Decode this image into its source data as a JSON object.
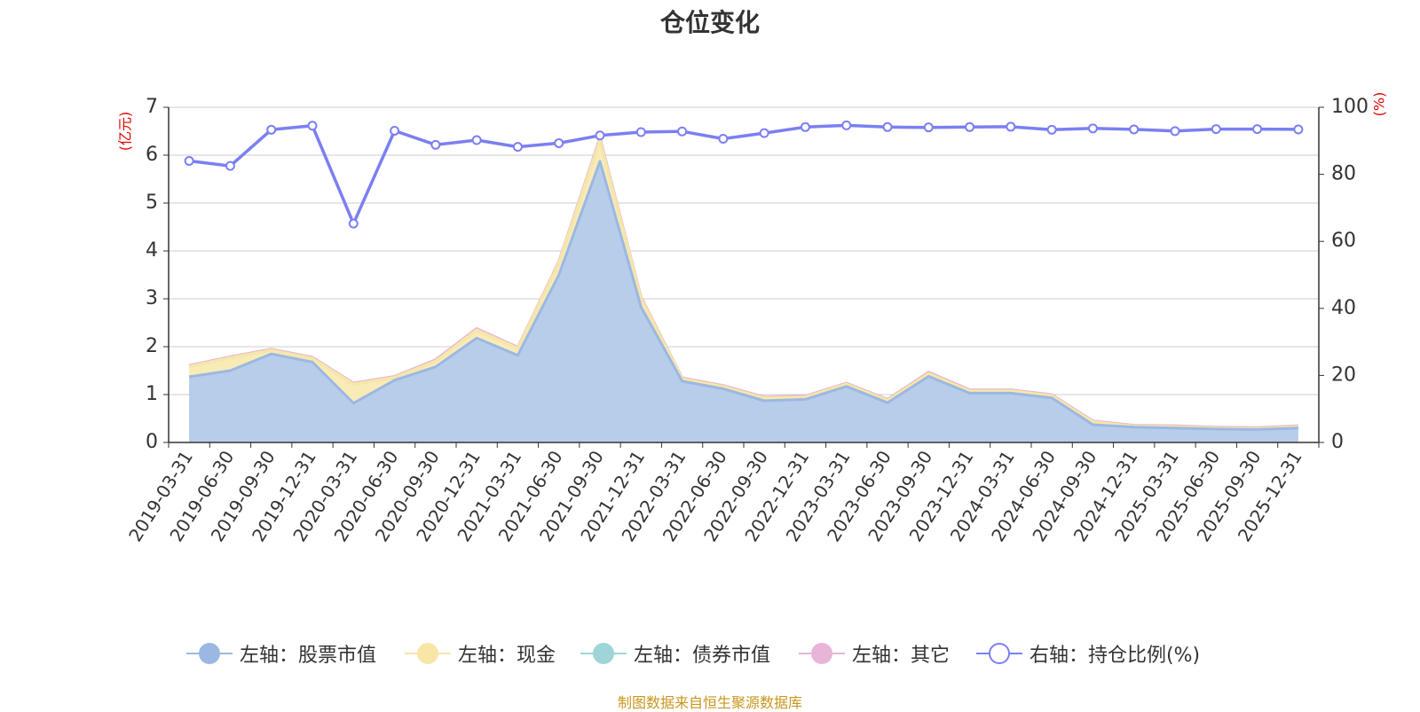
{
  "chart_data": {
    "type": "area",
    "title": "仓位变化",
    "left_axis_unit": "(亿元)",
    "right_axis_unit": "(%)",
    "categories": [
      "2019-03-31",
      "2019-06-30",
      "2019-09-30",
      "2019-12-31",
      "2020-03-31",
      "2020-06-30",
      "2020-09-30",
      "2020-12-31",
      "2021-03-31",
      "2021-06-30",
      "2021-09-30",
      "2021-12-31",
      "2022-03-31",
      "2022-06-30",
      "2022-09-30",
      "2022-12-31",
      "2023-03-31",
      "2023-06-30",
      "2023-09-30",
      "2023-12-31",
      "2024-03-31",
      "2024-06-30",
      "2024-09-30",
      "2024-12-31",
      "2025-03-31",
      "2025-06-30",
      "2025-09-30",
      "2025-12-31"
    ],
    "left_ylim": [
      0,
      7
    ],
    "left_ticks": [
      0,
      1,
      2,
      3,
      4,
      5,
      6,
      7
    ],
    "right_ylim": [
      0,
      100
    ],
    "right_ticks": [
      0,
      20,
      40,
      60,
      80,
      100
    ],
    "grid": true,
    "legend_position": "bottom",
    "series": [
      {
        "name": "左轴：股票市值",
        "axis": "left",
        "stacked": true,
        "color": "#9bb8e3",
        "fill": "#b8cdea",
        "values": [
          1.37,
          1.5,
          1.85,
          1.68,
          0.82,
          1.3,
          1.58,
          2.18,
          1.82,
          3.5,
          5.87,
          2.83,
          1.28,
          1.12,
          0.87,
          0.9,
          1.17,
          0.83,
          1.38,
          1.03,
          1.03,
          0.93,
          0.37,
          0.32,
          0.3,
          0.28,
          0.27,
          0.3
        ]
      },
      {
        "name": "左轴：现金",
        "axis": "left",
        "stacked": true,
        "color": "#f8e6a6",
        "fill": "#f8ebb5",
        "values": [
          0.22,
          0.27,
          0.08,
          0.08,
          0.4,
          0.06,
          0.12,
          0.17,
          0.15,
          0.25,
          0.45,
          0.18,
          0.05,
          0.05,
          0.06,
          0.05,
          0.05,
          0.05,
          0.06,
          0.05,
          0.05,
          0.05,
          0.06,
          0.02,
          0.03,
          0.02,
          0.02,
          0.03
        ]
      },
      {
        "name": "左轴：债券市值",
        "axis": "left",
        "stacked": true,
        "color": "#9fd5d8",
        "fill": "#a8d8d8",
        "values": [
          0,
          0,
          0,
          0,
          0,
          0,
          0,
          0,
          0,
          0,
          0,
          0,
          0,
          0,
          0,
          0,
          0,
          0,
          0,
          0,
          0,
          0,
          0,
          0,
          0,
          0,
          0,
          0
        ]
      },
      {
        "name": "左轴：其它",
        "axis": "left",
        "stacked": true,
        "color": "#e8b4d8",
        "fill": "#eec2de",
        "values": [
          0.02,
          0.02,
          0.02,
          0.02,
          0.02,
          0.02,
          0.03,
          0.03,
          0.02,
          0.03,
          0.05,
          0.03,
          0.02,
          0.02,
          0.02,
          0.02,
          0.02,
          0.02,
          0.03,
          0.02,
          0.02,
          0.02,
          0.02,
          0.02,
          0.02,
          0.02,
          0.02,
          0.02
        ]
      },
      {
        "name": "右轴：持仓比例(%)",
        "axis": "right",
        "type": "line",
        "color": "#7b7ff2",
        "values": [
          84,
          82.5,
          93.3,
          94.5,
          65.3,
          93,
          88.8,
          90.2,
          88.2,
          89.3,
          91.6,
          92.6,
          92.8,
          90.6,
          92.3,
          94.1,
          94.6,
          94.1,
          94,
          94.1,
          94.2,
          93.3,
          93.7,
          93.4,
          92.9,
          93.5,
          93.5,
          93.4
        ]
      }
    ]
  },
  "source_text": "制图数据来自恒生聚源数据库"
}
